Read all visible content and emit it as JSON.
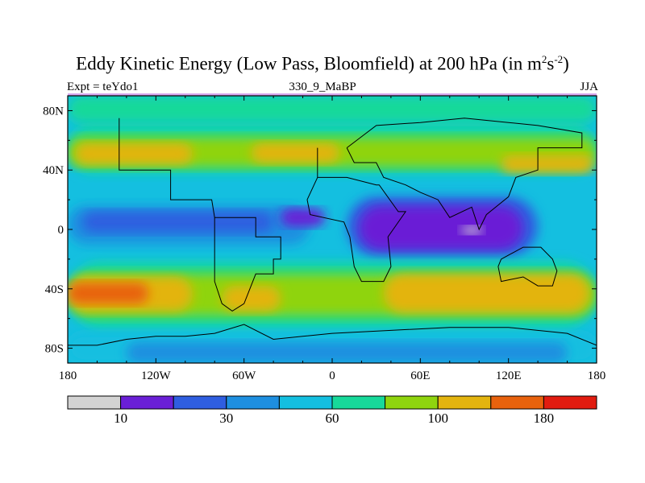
{
  "title": {
    "main": "Eddy Kinetic Energy (Low Pass, Bloomfield) at 200 hPa (in m",
    "sup1": "2",
    "mid": "s",
    "sup2": "-2",
    "end": ")"
  },
  "subtitle": {
    "left": "Expt = teYdo1",
    "center": "330_9_MaBP",
    "right": "JJA"
  },
  "chart_data": {
    "type": "heatmap",
    "title": "Eddy Kinetic Energy (Low Pass, Bloomfield) at 200 hPa (in m2s-2)",
    "variable": "Eddy Kinetic Energy",
    "units": "m2s-2",
    "level": "200 hPa",
    "season": "JJA",
    "experiment": "teYdo1",
    "period": "330_9_MaBP",
    "xlim": [
      -180,
      180
    ],
    "ylim": [
      -90,
      90
    ],
    "x_ticks": [
      {
        "value": -180,
        "label": "180"
      },
      {
        "value": -120,
        "label": "120W"
      },
      {
        "value": -60,
        "label": "60W"
      },
      {
        "value": 0,
        "label": "0"
      },
      {
        "value": 60,
        "label": "60E"
      },
      {
        "value": 120,
        "label": "120E"
      },
      {
        "value": 180,
        "label": "180"
      }
    ],
    "y_ticks": [
      {
        "value": 80,
        "label": "80N"
      },
      {
        "value": 40,
        "label": "40N"
      },
      {
        "value": 0,
        "label": "0"
      },
      {
        "value": -40,
        "label": "40S"
      },
      {
        "value": -80,
        "label": "80S"
      }
    ],
    "colorbar": {
      "colors": [
        "#d3d3d3",
        "#6a1fd6",
        "#2f5ee0",
        "#1e8fe0",
        "#14bfe0",
        "#17d99a",
        "#8fd40e",
        "#e3b40f",
        "#e8620d",
        "#e11c10"
      ],
      "labels": [
        {
          "after_box": 1,
          "text": "10"
        },
        {
          "after_box": 3,
          "text": "30"
        },
        {
          "after_box": 5,
          "text": "60"
        },
        {
          "after_box": 7,
          "text": "100"
        },
        {
          "after_box": 9,
          "text": "180"
        }
      ]
    },
    "regions": [
      {
        "desc": "background",
        "color": "#14bfe0",
        "lon": [
          -180,
          180
        ],
        "lat": [
          -90,
          90
        ]
      },
      {
        "desc": "northern storm band",
        "color": "#17d99a",
        "lon": [
          -180,
          180
        ],
        "lat": [
          38,
          70
        ]
      },
      {
        "desc": "northern storm band core",
        "color": "#8fd40e",
        "lon": [
          -180,
          180
        ],
        "lat": [
          42,
          62
        ]
      },
      {
        "desc": "north pacific maximum",
        "color": "#e3b40f",
        "lon": [
          -175,
          -95
        ],
        "lat": [
          44,
          58
        ]
      },
      {
        "desc": "north atlantic maximum",
        "color": "#e3b40f",
        "lon": [
          -55,
          5
        ],
        "lat": [
          45,
          58
        ]
      },
      {
        "desc": "east asia maximum",
        "color": "#e3b40f",
        "lon": [
          115,
          178
        ],
        "lat": [
          38,
          50
        ]
      },
      {
        "desc": "arctic",
        "color": "#17d99a",
        "lon": [
          -180,
          180
        ],
        "lat": [
          72,
          90
        ]
      },
      {
        "desc": "equatorial pacific",
        "color": "#1e8fe0",
        "lon": [
          -180,
          -15
        ],
        "lat": [
          -10,
          16
        ]
      },
      {
        "desc": "equatorial pacific core",
        "color": "#2f5ee0",
        "lon": [
          -170,
          -40
        ],
        "lat": [
          -2,
          12
        ]
      },
      {
        "desc": "equatorial atlantic-indian",
        "color": "#2f5ee0",
        "lon": [
          10,
          140
        ],
        "lat": [
          -18,
          22
        ]
      },
      {
        "desc": "tropical minimum",
        "color": "#6a1fd6",
        "lon": [
          18,
          130
        ],
        "lat": [
          -14,
          16
        ]
      },
      {
        "desc": "tropical minimum west",
        "color": "#6a1fd6",
        "lon": [
          -35,
          -5
        ],
        "lat": [
          2,
          14
        ]
      },
      {
        "desc": "tropical minimum value",
        "color": "#d3d3d3",
        "lon": [
          88,
          102
        ],
        "lat": [
          -3,
          2
        ]
      },
      {
        "desc": "southern storm band",
        "color": "#17d99a",
        "lon": [
          -180,
          180
        ],
        "lat": [
          -66,
          -22
        ]
      },
      {
        "desc": "southern storm band core",
        "color": "#8fd40e",
        "lon": [
          -180,
          180
        ],
        "lat": [
          -58,
          -30
        ]
      },
      {
        "desc": "south pacific jet",
        "color": "#e3b40f",
        "lon": [
          -180,
          -95
        ],
        "lat": [
          -55,
          -32
        ]
      },
      {
        "desc": "south pacific max",
        "color": "#e8620d",
        "lon": [
          -180,
          -125
        ],
        "lat": [
          -50,
          -36
        ]
      },
      {
        "desc": "south atlantic jet",
        "color": "#e3b40f",
        "lon": [
          -75,
          -35
        ],
        "lat": [
          -55,
          -38
        ]
      },
      {
        "desc": "south indian jet",
        "color": "#e3b40f",
        "lon": [
          35,
          175
        ],
        "lat": [
          -56,
          -30
        ]
      },
      {
        "desc": "antarctic",
        "color": "#14bfe0",
        "lon": [
          -180,
          180
        ],
        "lat": [
          -90,
          -70
        ]
      },
      {
        "desc": "antarctic core",
        "color": "#1e8fe0",
        "lon": [
          -140,
          160
        ],
        "lat": [
          -90,
          -76
        ]
      }
    ],
    "coastlines": [
      [
        [
          -145,
          75
        ],
        [
          -145,
          40
        ],
        [
          -110,
          40
        ],
        [
          -110,
          20
        ],
        [
          -82,
          20
        ],
        [
          -80,
          8
        ],
        [
          -52,
          8
        ],
        [
          -52,
          -5
        ],
        [
          -35,
          -5
        ],
        [
          -35,
          -20
        ],
        [
          -40,
          -20
        ],
        [
          -40,
          -30
        ],
        [
          -52,
          -30
        ],
        [
          -60,
          -50
        ],
        [
          -68,
          -55
        ],
        [
          -75,
          -50
        ],
        [
          -80,
          -35
        ],
        [
          -80,
          -15
        ],
        [
          -80,
          0
        ],
        [
          -80,
          8
        ]
      ],
      [
        [
          -10,
          55
        ],
        [
          -10,
          35
        ],
        [
          10,
          35
        ],
        [
          30,
          30
        ],
        [
          32,
          30
        ],
        [
          45,
          12
        ],
        [
          50,
          12
        ],
        [
          38,
          -5
        ],
        [
          40,
          -25
        ],
        [
          35,
          -35
        ],
        [
          20,
          -35
        ],
        [
          15,
          -25
        ],
        [
          12,
          -5
        ],
        [
          8,
          5
        ],
        [
          -15,
          10
        ],
        [
          -17,
          20
        ],
        [
          -10,
          35
        ]
      ],
      [
        [
          10,
          55
        ],
        [
          30,
          70
        ],
        [
          60,
          72
        ],
        [
          90,
          75
        ],
        [
          120,
          72
        ],
        [
          140,
          70
        ],
        [
          170,
          65
        ],
        [
          170,
          55
        ],
        [
          140,
          55
        ],
        [
          140,
          40
        ],
        [
          125,
          35
        ],
        [
          120,
          22
        ],
        [
          105,
          10
        ],
        [
          100,
          0
        ],
        [
          95,
          15
        ],
        [
          80,
          8
        ],
        [
          72,
          20
        ],
        [
          60,
          25
        ],
        [
          50,
          30
        ],
        [
          35,
          35
        ],
        [
          30,
          45
        ],
        [
          15,
          45
        ],
        [
          10,
          55
        ]
      ],
      [
        [
          115,
          -20
        ],
        [
          130,
          -12
        ],
        [
          142,
          -12
        ],
        [
          150,
          -20
        ],
        [
          153,
          -28
        ],
        [
          150,
          -38
        ],
        [
          140,
          -38
        ],
        [
          130,
          -32
        ],
        [
          115,
          -35
        ],
        [
          113,
          -25
        ],
        [
          115,
          -20
        ]
      ],
      [
        [
          -180,
          -78
        ],
        [
          -160,
          -78
        ],
        [
          -140,
          -74
        ],
        [
          -120,
          -72
        ],
        [
          -100,
          -72
        ],
        [
          -80,
          -70
        ],
        [
          -60,
          -64
        ],
        [
          -40,
          -74
        ],
        [
          -20,
          -72
        ],
        [
          0,
          -70
        ],
        [
          40,
          -68
        ],
        [
          80,
          -66
        ],
        [
          120,
          -66
        ],
        [
          160,
          -70
        ],
        [
          180,
          -78
        ]
      ]
    ]
  }
}
